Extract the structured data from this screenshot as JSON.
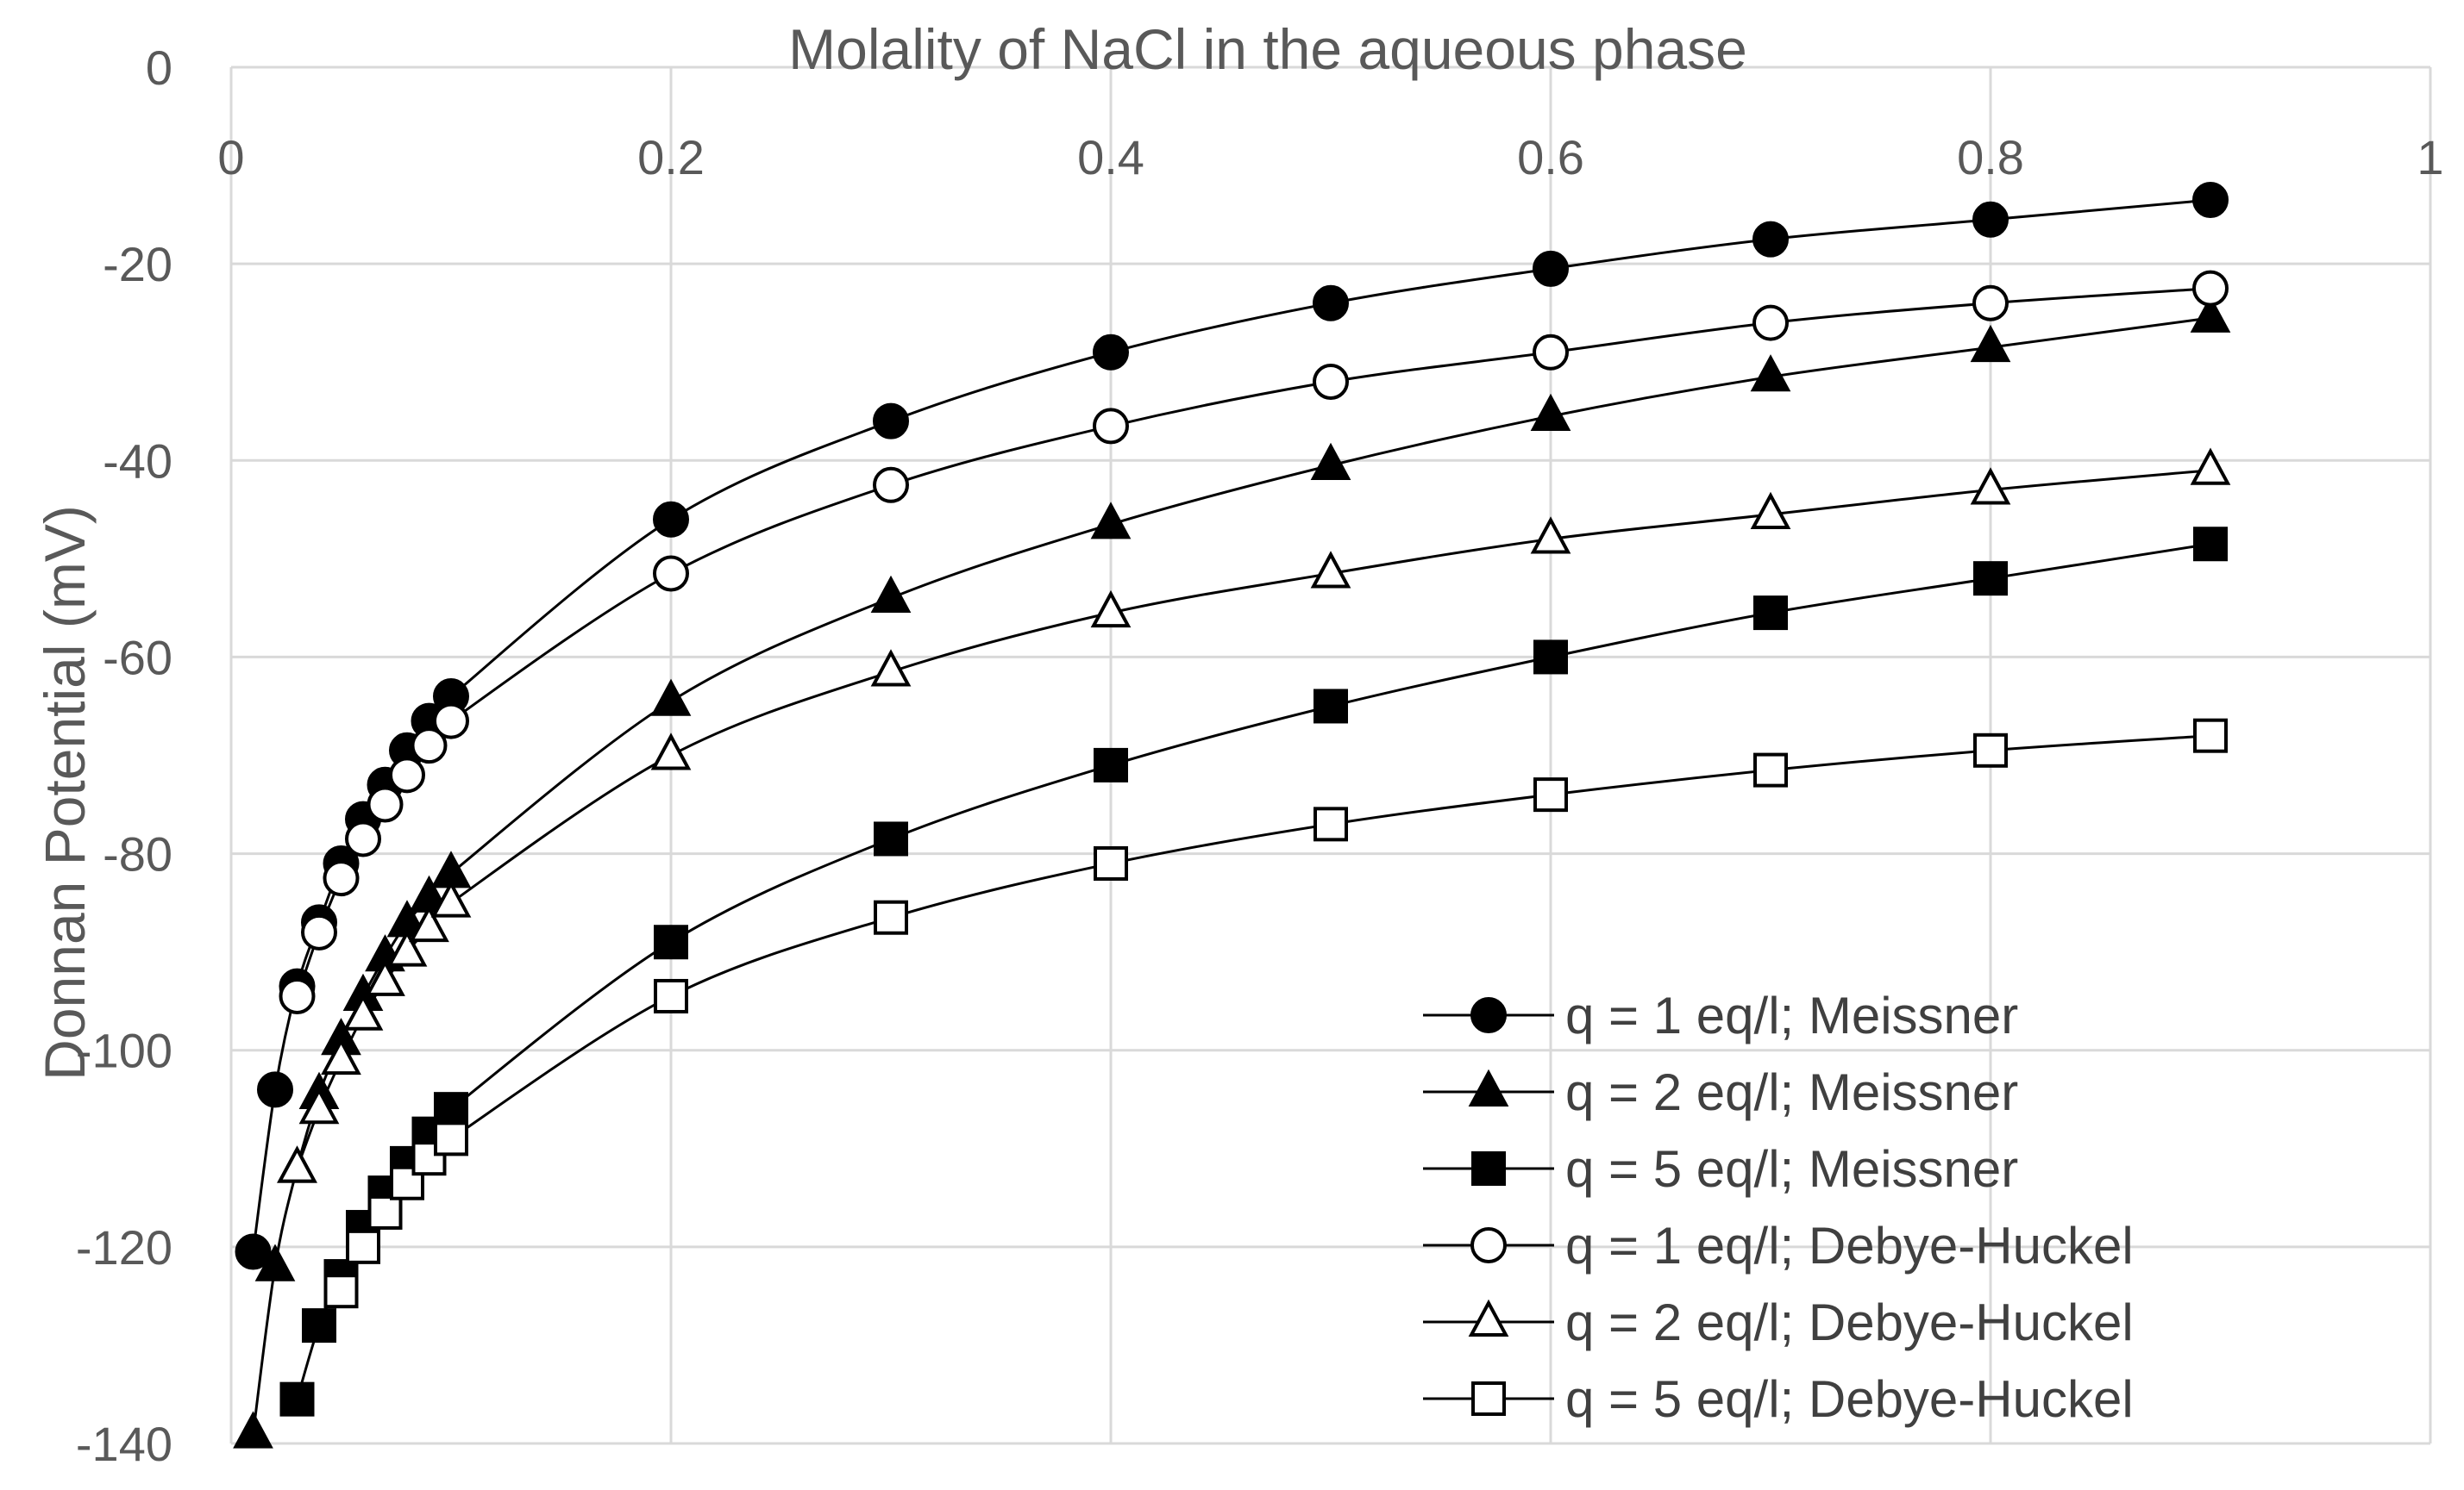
{
  "chart_data": {
    "type": "line",
    "xlabel": "Molality of NaCl in the aqueous phase",
    "ylabel": "Donnan Potential (mV)",
    "xlim": [
      0,
      1
    ],
    "ylim": [
      -140,
      0
    ],
    "x_ticks": [
      0,
      0.2,
      0.4,
      0.6,
      0.8,
      1
    ],
    "x_tick_labels": [
      "0",
      "0.2",
      "0.4",
      "0.6",
      "0.8",
      "1"
    ],
    "y_ticks": [
      0,
      -20,
      -40,
      -60,
      -80,
      -100,
      -120,
      -140
    ],
    "y_tick_labels": [
      "0",
      "-20",
      "-40",
      "-60",
      "-80",
      "-100",
      "-120",
      "-140"
    ],
    "x_axis_position": "top",
    "grid": true,
    "legend_position": "bottom-right",
    "series": [
      {
        "name": "q = 1 eq/l;  Meissner",
        "marker": "circle",
        "filled": true,
        "x": [
          0.01,
          0.02,
          0.03,
          0.04,
          0.05,
          0.06,
          0.07,
          0.08,
          0.09,
          0.1,
          0.2,
          0.3,
          0.4,
          0.5,
          0.6,
          0.7,
          0.8,
          0.9
        ],
        "y": [
          -120.5,
          -104,
          -93.5,
          -87,
          -81,
          -76.5,
          -73,
          -69.5,
          -66.5,
          -64,
          -46,
          -36,
          -29,
          -24,
          -20.5,
          -17.5,
          -15.5,
          -13.5
        ]
      },
      {
        "name": "q = 2 eq/l;  Meissner",
        "marker": "triangle",
        "filled": true,
        "x": [
          0.01,
          0.02,
          0.03,
          0.04,
          0.05,
          0.06,
          0.07,
          0.08,
          0.09,
          0.1,
          0.2,
          0.3,
          0.4,
          0.5,
          0.6,
          0.7,
          0.8,
          0.9
        ],
        "y": [
          -139,
          -122,
          -112,
          -104.5,
          -99,
          -94.5,
          -90.5,
          -87,
          -84.5,
          -82,
          -64.5,
          -54,
          -46.5,
          -40.5,
          -35.5,
          -31.5,
          -28.5,
          -25.5
        ]
      },
      {
        "name": "q = 5 eq/l; Meissner",
        "marker": "square",
        "filled": true,
        "x": [
          0.03,
          0.04,
          0.05,
          0.06,
          0.07,
          0.08,
          0.09,
          0.1,
          0.2,
          0.3,
          0.4,
          0.5,
          0.6,
          0.7,
          0.8,
          0.9
        ],
        "y": [
          -135.5,
          -128,
          -123,
          -118,
          -114.5,
          -111.5,
          -108.5,
          -106,
          -89,
          -78.5,
          -71,
          -65,
          -60,
          -55.5,
          -52,
          -48.5
        ]
      },
      {
        "name": "q = 1 eq/l; Debye-Huckel",
        "marker": "circle",
        "filled": false,
        "x": [
          0.03,
          0.04,
          0.05,
          0.06,
          0.07,
          0.08,
          0.09,
          0.1,
          0.2,
          0.3,
          0.4,
          0.5,
          0.6,
          0.7,
          0.8,
          0.9
        ],
        "y": [
          -94.5,
          -88,
          -82.5,
          -78.5,
          -75,
          -72,
          -69,
          -66.5,
          -51.5,
          -42.5,
          -36.5,
          -32,
          -29,
          -26,
          -24,
          -22.5
        ]
      },
      {
        "name": "q = 2 eq/l; Debye-Huckel",
        "marker": "triangle",
        "filled": false,
        "x": [
          0.03,
          0.04,
          0.05,
          0.06,
          0.07,
          0.08,
          0.09,
          0.1,
          0.2,
          0.3,
          0.4,
          0.5,
          0.6,
          0.7,
          0.8,
          0.9
        ],
        "y": [
          -112,
          -106,
          -101,
          -96.5,
          -93,
          -90,
          -87.5,
          -85,
          -70,
          -61.5,
          -55.5,
          -51.5,
          -48,
          -45.5,
          -43,
          -41
        ]
      },
      {
        "name": "q =  5 eq/l; Debye-Huckel",
        "marker": "square",
        "filled": false,
        "x": [
          0.05,
          0.06,
          0.07,
          0.08,
          0.09,
          0.1,
          0.2,
          0.3,
          0.4,
          0.5,
          0.6,
          0.7,
          0.8,
          0.9
        ],
        "y": [
          -124.5,
          -120,
          -116.5,
          -113.5,
          -111,
          -109,
          -94.5,
          -86.5,
          -81,
          -77,
          -74,
          -71.5,
          -69.5,
          -68
        ]
      }
    ]
  }
}
